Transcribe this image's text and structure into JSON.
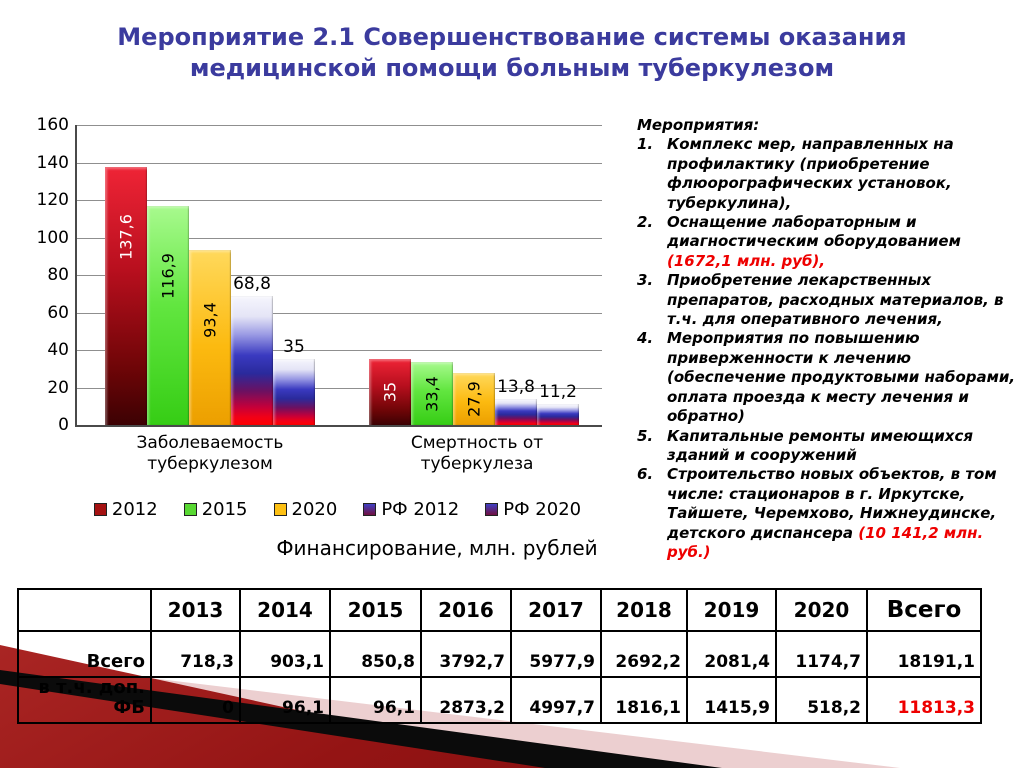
{
  "title": "Мероприятие 2.1 Совершенствование системы оказания медицинской помощи больным туберкулезом",
  "colors": {
    "title_blue": "#3b3b9e",
    "accent_red": "#ee0000",
    "deco_dark_red": "#941414",
    "deco_pink": "#eccfd0",
    "deco_black": "#0b0b0b"
  },
  "chart_data": {
    "type": "bar",
    "title": "",
    "xlabel": "",
    "ylabel": "",
    "ylim": [
      0,
      160
    ],
    "ytick_step": 20,
    "grid": true,
    "legend_position": "bottom",
    "categories": [
      "Заболеваемость туберкулезом",
      "Смертность от туберкулеза"
    ],
    "series": [
      {
        "name": "2012",
        "values": [
          137.6,
          35
        ],
        "labels": [
          "137,6",
          "35"
        ],
        "label_placement": "inside",
        "label_color": "#ffffff",
        "legend_color": "#a51212",
        "gradient": [
          "#ef2436 0%",
          "#b80f1e 40%",
          "#6e0507 78%",
          "#3c0103 100%"
        ]
      },
      {
        "name": "2015",
        "values": [
          116.9,
          33.4
        ],
        "labels": [
          "116,9",
          "33,4"
        ],
        "label_placement": "inside",
        "label_color": "#000000",
        "legend_color": "#58d832",
        "gradient": [
          "#a8fa8e 0%",
          "#62e640 45%",
          "#36cd15 100%"
        ]
      },
      {
        "name": "2020",
        "values": [
          93.4,
          27.9
        ],
        "labels": [
          "93,4",
          "27,9"
        ],
        "label_placement": "inside",
        "label_color": "#000000",
        "legend_color": "#fdc013",
        "gradient": [
          "#ffd95c 0%",
          "#fcba10 55%",
          "#ec9f00 100%"
        ]
      },
      {
        "name": "РФ 2012",
        "values": [
          68.8,
          13.8
        ],
        "labels": [
          "68,8",
          "13,8"
        ],
        "label_placement": "outside",
        "label_color": "#000000",
        "legend_color": "#4040c4",
        "gradient": [
          "#f6f6fd 0%",
          "#e4e4f6 16%",
          "#9a9ae4 30%",
          "#3a3ac0 46%",
          "#2a2a9c 60%",
          "#6d1060 74%",
          "#c4003a 86%",
          "#f20016 94%",
          "#ff0000 100%"
        ]
      },
      {
        "name": "РФ 2020",
        "values": [
          35,
          11.2
        ],
        "labels": [
          "35",
          "11,2"
        ],
        "label_placement": "outside",
        "label_color": "#000000",
        "legend_color": "#4040c4",
        "gradient": [
          "#f6f6fd 0%",
          "#e4e4f6 16%",
          "#9a9ae4 30%",
          "#3a3ac0 46%",
          "#2a2a9c 60%",
          "#6d1060 74%",
          "#c4003a 86%",
          "#f20016 94%",
          "#ff0000 100%"
        ]
      }
    ]
  },
  "measures": {
    "heading": "Мероприятия:",
    "items": [
      {
        "num": "1.",
        "text": "Комплекс мер, направленных на профилактику (приобретение флюорографических установок, туберкулина),",
        "red": ""
      },
      {
        "num": "2.",
        "text": "Оснащение лабораторным и диагностическим оборудованием ",
        "red": "(1672,1 млн. руб),"
      },
      {
        "num": "3.",
        "text": "Приобретение лекарственных препаратов, расходных материалов, в т.ч. для оперативного лечения,",
        "red": ""
      },
      {
        "num": "4.",
        "text": "Мероприятия по повышению приверженности к лечению (обеспечение продуктовыми наборами, оплата проезда к месту лечения и обратно)",
        "red": ""
      },
      {
        "num": "5.",
        "text": "Капитальные ремонты имеющихся зданий и сооружений",
        "red": ""
      },
      {
        "num": "6.",
        "text": "Строительство новых объектов, в том числе: стационаров в г. Иркутске, Тайшете, Черемхово, Нижнеудинске, детского диспансера ",
        "red": "(10 141,2 млн. руб.)"
      }
    ]
  },
  "finance_table": {
    "title": "Финансирование, млн. рублей",
    "columns": [
      "",
      "2013",
      "2014",
      "2015",
      "2016",
      "2017",
      "2018",
      "2019",
      "2020",
      "Всего"
    ],
    "rows": [
      {
        "label": "Всего",
        "values": [
          "718,3",
          "903,1",
          "850,8",
          "3792,7",
          "5977,9",
          "2692,2",
          "2081,4",
          "1174,7",
          "18191,1"
        ],
        "total_color": "#000000"
      },
      {
        "label": "в т.ч. доп. ФБ",
        "values": [
          "0",
          "96,1",
          "96,1",
          "2873,2",
          "4997,7",
          "1816,1",
          "1415,9",
          "518,2",
          "11813,3"
        ],
        "total_color": "#ee0000"
      }
    ]
  }
}
